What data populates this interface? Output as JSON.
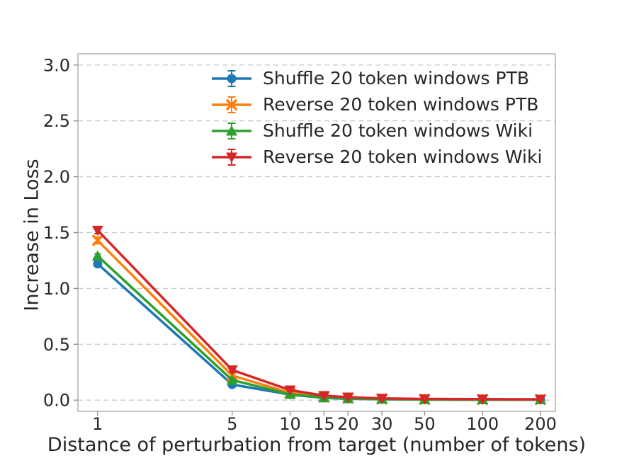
{
  "chart_data": {
    "type": "line",
    "xscale": "log",
    "grid": "horizontal-dashed",
    "legend_position": "upper center",
    "xlabel": "Distance of perturbation from target (number of tokens)",
    "ylabel": "Increase in Loss",
    "x": [
      1,
      5,
      10,
      15,
      20,
      30,
      50,
      100,
      200
    ],
    "xticks": [
      "1",
      "5",
      "10",
      "15",
      "20",
      "30",
      "50",
      "100",
      "200"
    ],
    "ytick_values": [
      0.0,
      0.5,
      1.0,
      1.5,
      2.0,
      2.5,
      3.0
    ],
    "yticks": [
      "0.0",
      "0.5",
      "1.0",
      "1.5",
      "2.0",
      "2.5",
      "3.0"
    ],
    "xlim": [
      0.79,
      239
    ],
    "ylim": [
      -0.1,
      3.1
    ],
    "series": [
      {
        "name": "Shuffle 20 token windows PTB",
        "color": "#1f77b4",
        "marker": "circle",
        "values": [
          1.22,
          0.14,
          0.05,
          0.02,
          0.012,
          0.008,
          0.005,
          0.004,
          0.004
        ],
        "errors": [
          0.025,
          0.015,
          0.008,
          0.005,
          0.004,
          0.003,
          0.003,
          0.002,
          0.002
        ]
      },
      {
        "name": "Reverse 20 token windows PTB",
        "color": "#ff7f0e",
        "marker": "x",
        "values": [
          1.43,
          0.22,
          0.065,
          0.028,
          0.018,
          0.01,
          0.007,
          0.005,
          0.005
        ],
        "errors": [
          0.03,
          0.02,
          0.01,
          0.006,
          0.005,
          0.004,
          0.003,
          0.003,
          0.003
        ]
      },
      {
        "name": "Shuffle 20 token windows Wiki",
        "color": "#2ca02c",
        "marker": "triangle-up",
        "values": [
          1.29,
          0.18,
          0.052,
          0.022,
          0.015,
          0.009,
          0.006,
          0.005,
          0.005
        ],
        "errors": [
          0.02,
          0.012,
          0.007,
          0.005,
          0.004,
          0.003,
          0.002,
          0.002,
          0.002
        ]
      },
      {
        "name": "Reverse 20 token windows Wiki",
        "color": "#d62728",
        "marker": "triangle-down",
        "values": [
          1.52,
          0.27,
          0.09,
          0.04,
          0.027,
          0.016,
          0.011,
          0.009,
          0.008
        ],
        "errors": [
          0.03,
          0.02,
          0.012,
          0.008,
          0.006,
          0.005,
          0.004,
          0.003,
          0.003
        ]
      }
    ]
  }
}
